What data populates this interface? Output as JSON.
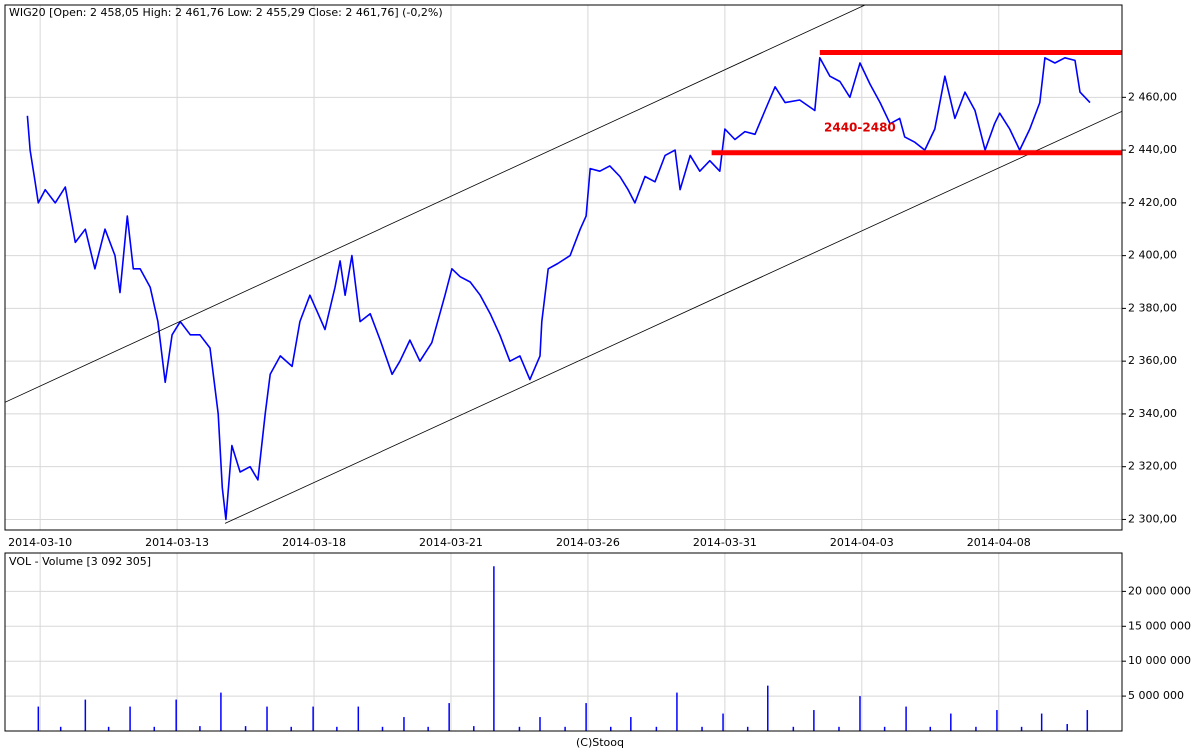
{
  "chart_data": [
    {
      "type": "line",
      "title": "WIG20 [Open: 2 458,05  High: 2 461,76  Low: 2 455,29  Close: 2 461,76] (-0,2%)",
      "annotation": "2440-2480",
      "annotation_color": "#dd0000",
      "xlim": [
        -0.77,
        23.7
      ],
      "ylim": [
        2296,
        2495
      ],
      "xticks": [
        {
          "value": 0,
          "label": "2014-03-10"
        },
        {
          "value": 3,
          "label": "2014-03-13"
        },
        {
          "value": 6,
          "label": "2014-03-18"
        },
        {
          "value": 9,
          "label": "2014-03-21"
        },
        {
          "value": 12,
          "label": "2014-03-26"
        },
        {
          "value": 15,
          "label": "2014-03-31"
        },
        {
          "value": 18,
          "label": "2014-04-03"
        },
        {
          "value": 21,
          "label": "2014-04-08"
        }
      ],
      "yticks": [
        {
          "value": 2300,
          "label": "2 300,00"
        },
        {
          "value": 2320,
          "label": "2 320,00"
        },
        {
          "value": 2340,
          "label": "2 340,00"
        },
        {
          "value": 2360,
          "label": "2 360,00"
        },
        {
          "value": 2380,
          "label": "2 380,00"
        },
        {
          "value": 2400,
          "label": "2 400,00"
        },
        {
          "value": 2420,
          "label": "2 420,00"
        },
        {
          "value": 2440,
          "label": "2 440,00"
        },
        {
          "value": 2460,
          "label": "2 460,00"
        }
      ],
      "grid": true,
      "series": [
        {
          "color": "#0000ff",
          "x": [
            -0.28,
            -0.22,
            -0.11,
            -0.04,
            0.11,
            0.33,
            0.55,
            0.77,
            0.99,
            1.2,
            1.42,
            1.64,
            1.75,
            1.91,
            2.04,
            2.19,
            2.41,
            2.58,
            2.74,
            2.89,
            3.07,
            3.29,
            3.5,
            3.72,
            3.9,
            3.99,
            4.07,
            4.2,
            4.38,
            4.6,
            4.77,
            4.93,
            5.04,
            5.26,
            5.52,
            5.69,
            5.91,
            6.09,
            6.24,
            6.46,
            6.57,
            6.68,
            6.83,
            7.01,
            7.23,
            7.45,
            7.71,
            7.88,
            8.1,
            8.32,
            8.58,
            8.87,
            9.02,
            9.2,
            9.42,
            9.64,
            9.86,
            10.07,
            10.29,
            10.51,
            10.73,
            10.95,
            10.99,
            11.13,
            11.34,
            11.61,
            11.83,
            11.96,
            12.05,
            12.26,
            12.48,
            12.7,
            12.88,
            13.03,
            13.25,
            13.47,
            13.69,
            13.91,
            14.02,
            14.24,
            14.45,
            14.67,
            14.89,
            15.0,
            15.22,
            15.44,
            15.66,
            15.88,
            16.1,
            16.32,
            16.64,
            16.97,
            17.08,
            17.3,
            17.52,
            17.74,
            17.96,
            18.18,
            18.4,
            18.62,
            18.83,
            18.94,
            19.16,
            19.38,
            19.6,
            19.82,
            20.04,
            20.26,
            20.48,
            20.7,
            20.91,
            21.02,
            21.24,
            21.46,
            21.68,
            21.9,
            22.01,
            22.23,
            22.45,
            22.67,
            22.78,
            22.89,
            23.0
          ],
          "values": [
            2453,
            2440,
            2428,
            2420,
            2425,
            2420,
            2426,
            2405,
            2410,
            2395,
            2410,
            2400,
            2386,
            2415,
            2395,
            2395,
            2388,
            2375,
            2352,
            2370,
            2375,
            2370,
            2370,
            2365,
            2340,
            2312,
            2300,
            2328,
            2318,
            2320,
            2315,
            2340,
            2355,
            2362,
            2358,
            2375,
            2385,
            2378,
            2372,
            2388,
            2398,
            2385,
            2400,
            2375,
            2378,
            2368,
            2355,
            2360,
            2368,
            2360,
            2367,
            2385,
            2395,
            2392,
            2390,
            2385,
            2378,
            2370,
            2360,
            2362,
            2353,
            2362,
            2375,
            2395,
            2397,
            2400,
            2410,
            2415,
            2433,
            2432,
            2434,
            2430,
            2425,
            2420,
            2430,
            2428,
            2438,
            2440,
            2425,
            2438,
            2432,
            2436,
            2432,
            2448,
            2444,
            2447,
            2446,
            2455,
            2464,
            2458,
            2459,
            2455,
            2475,
            2468,
            2466,
            2460,
            2473,
            2465,
            2458,
            2450,
            2452,
            2445,
            2443,
            2440,
            2448,
            2468,
            2452,
            2462,
            2455,
            2440,
            2450,
            2454,
            2448,
            2440,
            2448,
            2458,
            2475,
            2473,
            2475,
            2474,
            2462,
            2460,
            2458
          ]
        }
      ],
      "trend_lines": [
        {
          "x": [
            -0.77,
            18.07
          ],
          "y": [
            2344.4,
            2495
          ],
          "color": "#000000"
        },
        {
          "x": [
            4.05,
            23.7
          ],
          "y": [
            2298.5,
            2454.7
          ],
          "color": "#000000"
        },
        {
          "x": [
            17.08,
            23.7
          ],
          "y": [
            2477,
            2477
          ],
          "color": "#ff0000"
        },
        {
          "x": [
            14.71,
            23.7
          ],
          "y": [
            2439,
            2439
          ],
          "color": "#ff0000"
        }
      ]
    },
    {
      "type": "bar",
      "title": "VOL - Volume [3 092 305]",
      "footer": "(C)Stooq",
      "xlim": [
        -0.77,
        23.7
      ],
      "ylim": [
        0,
        25500000
      ],
      "yticks": [
        {
          "value": 5000000,
          "label": "5 000 000"
        },
        {
          "value": 10000000,
          "label": "10 000 000"
        },
        {
          "value": 15000000,
          "label": "15 000 000"
        },
        {
          "value": 20000000,
          "label": "20 000 000"
        }
      ],
      "grid": true,
      "series": [
        {
          "color": "#0000ff",
          "x": [
            -0.04,
            0.45,
            0.99,
            1.5,
            1.97,
            2.5,
            2.98,
            3.5,
            3.96,
            4.5,
            4.97,
            5.5,
            5.98,
            6.5,
            6.97,
            7.5,
            7.97,
            8.5,
            8.96,
            9.5,
            9.94,
            10.5,
            10.95,
            11.5,
            11.96,
            12.5,
            12.94,
            13.5,
            13.95,
            14.5,
            14.96,
            15.5,
            15.94,
            16.5,
            16.95,
            17.5,
            17.96,
            18.5,
            18.97,
            19.5,
            19.95,
            20.5,
            20.96,
            21.5,
            21.94,
            22.5,
            22.94
          ],
          "values": [
            3500000,
            600000,
            4500000,
            600000,
            3500000,
            600000,
            4500000,
            700000,
            5500000,
            700000,
            3500000,
            600000,
            3500000,
            600000,
            3500000,
            600000,
            2000000,
            600000,
            4000000,
            700000,
            23600000,
            600000,
            2000000,
            600000,
            4000000,
            600000,
            2000000,
            600000,
            5500000,
            600000,
            2500000,
            600000,
            6500000,
            600000,
            3000000,
            600000,
            5000000,
            600000,
            3500000,
            600000,
            2500000,
            600000,
            3000000,
            600000,
            2500000,
            1000000,
            3000000
          ]
        }
      ]
    }
  ]
}
